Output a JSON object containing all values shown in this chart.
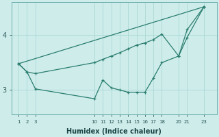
{
  "xlabel": "Humidex (Indice chaleur)",
  "background_color": "#cdecea",
  "grid_color": "#aad8d4",
  "line_color": "#2a7d6e",
  "x_ticks": [
    1,
    2,
    3,
    10,
    11,
    12,
    13,
    14,
    15,
    16,
    17,
    18,
    20,
    21,
    23
  ],
  "ylim": [
    2.55,
    4.6
  ],
  "yticks": [
    3,
    4
  ],
  "line_smooth": {
    "x": [
      1,
      23
    ],
    "y": [
      3.48,
      4.52
    ]
  },
  "line_upper": {
    "x": [
      1,
      2,
      3,
      10,
      11,
      12,
      13,
      14,
      15,
      16,
      17,
      18,
      20,
      21,
      23
    ],
    "y": [
      3.48,
      3.33,
      3.3,
      3.5,
      3.56,
      3.62,
      3.68,
      3.75,
      3.82,
      3.86,
      3.92,
      4.02,
      3.62,
      3.96,
      4.52
    ]
  },
  "line_jagged": {
    "x": [
      1,
      2,
      3,
      10,
      11,
      12,
      13,
      14,
      15,
      16,
      17,
      18,
      20,
      21,
      23
    ],
    "y": [
      3.48,
      3.33,
      3.02,
      2.84,
      3.18,
      3.04,
      3.0,
      2.96,
      2.96,
      2.96,
      3.22,
      3.5,
      3.62,
      4.1,
      4.52
    ]
  }
}
